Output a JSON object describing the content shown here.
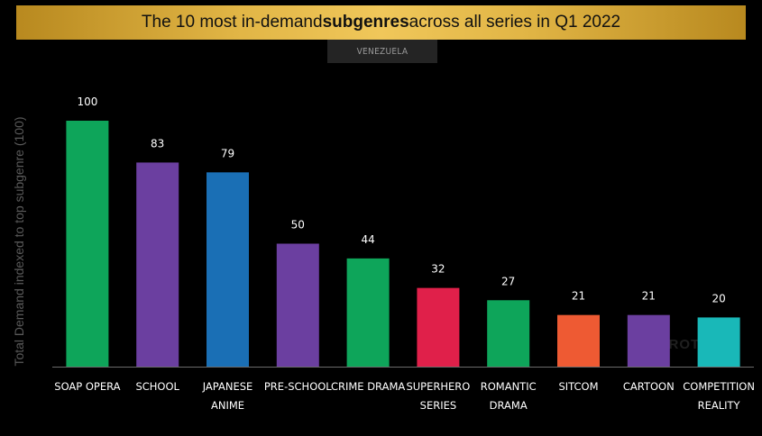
{
  "title": {
    "before": "The 10 most in-demand ",
    "bold": "subgenres",
    "after": " across all series in Q1 2022"
  },
  "region": "VENEZUELA",
  "watermark": "PARROT",
  "colors": {
    "background": "#000000",
    "banner_gold": "#e1b545",
    "axis": "#6a6a6a",
    "label_text": "#ffffff"
  },
  "chart_data": {
    "type": "bar",
    "title": "The 10 most in-demand subgenres across all series in Q1 2022",
    "subtitle": "VENEZUELA",
    "xlabel": "",
    "ylabel": "Total Demand indexed to top subgenre (100)",
    "ylim": [
      0,
      100
    ],
    "grid": false,
    "categories": [
      [
        "SOAP OPERA"
      ],
      [
        "SCHOOL"
      ],
      [
        "JAPANESE",
        "ANIME"
      ],
      [
        "PRE-SCHOOL"
      ],
      [
        "CRIME DRAMA"
      ],
      [
        "SUPERHERO",
        "SERIES"
      ],
      [
        "ROMANTIC",
        "DRAMA"
      ],
      [
        "SITCOM"
      ],
      [
        "CARTOON"
      ],
      [
        "COMPETITION",
        "REALITY"
      ]
    ],
    "values": [
      100,
      83,
      79,
      50,
      44,
      32,
      27,
      21,
      21,
      20
    ],
    "bar_colors": [
      "#0ea55a",
      "#6b3fa0",
      "#1a6fb5",
      "#6b3fa0",
      "#0ea55a",
      "#e0204a",
      "#0ea55a",
      "#ee5a33",
      "#6b3fa0",
      "#19b8b8"
    ]
  }
}
